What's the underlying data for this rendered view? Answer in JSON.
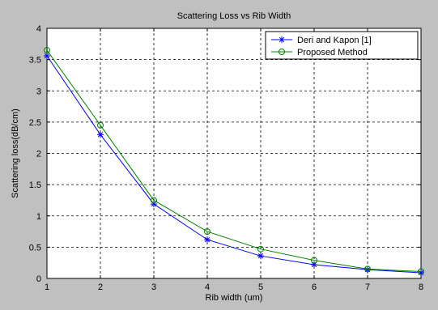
{
  "chart_data": {
    "type": "line",
    "title": "Scattering Loss vs Rib Width",
    "xlabel": "Rib width (um)",
    "ylabel": "Scattering loss(dB/cm)",
    "xlim": [
      1,
      8
    ],
    "ylim": [
      0,
      4
    ],
    "xticks": [
      1,
      2,
      3,
      4,
      5,
      6,
      7,
      8
    ],
    "yticks": [
      0,
      0.5,
      1,
      1.5,
      2,
      2.5,
      3,
      3.5,
      4
    ],
    "ytick_labels": [
      "0",
      "0.5",
      "1",
      "1.5",
      "2",
      "2.5",
      "3",
      "3.5",
      "4"
    ],
    "grid": true,
    "legend_position": "top-right",
    "x": [
      1,
      2,
      3,
      4,
      5,
      6,
      7,
      8
    ],
    "series": [
      {
        "name": "Deri and Kapon [1]",
        "color": "#0000ff",
        "marker": "asterisk",
        "values": [
          3.56,
          2.3,
          1.19,
          0.62,
          0.36,
          0.22,
          0.14,
          0.09
        ]
      },
      {
        "name": "Proposed Method",
        "color": "#008000",
        "marker": "circle",
        "values": [
          3.65,
          2.45,
          1.25,
          0.75,
          0.47,
          0.29,
          0.15,
          0.11
        ]
      }
    ]
  }
}
